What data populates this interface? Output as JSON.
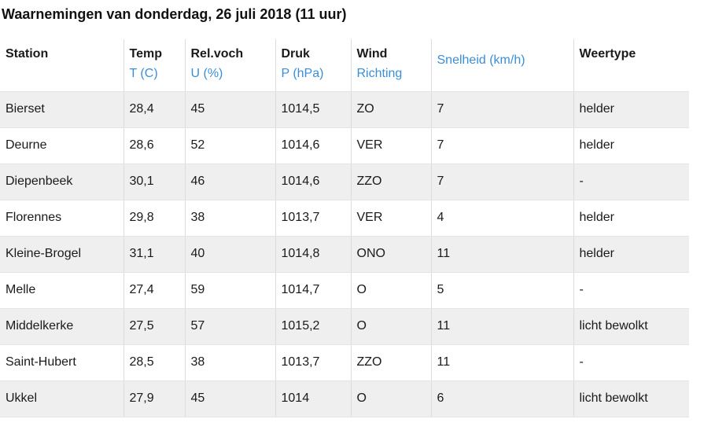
{
  "title": "Waarnemingen van donderdag, 26 juli 2018 (11 uur)",
  "headers": {
    "station": {
      "label": "Station",
      "unit": ""
    },
    "temp": {
      "label": "Temp",
      "unit": "T (C)"
    },
    "humidity": {
      "label": "Rel.voch",
      "unit": "U (%)"
    },
    "pressure": {
      "label": "Druk",
      "unit": "P (hPa)"
    },
    "wind_direction": {
      "label": "Wind",
      "unit": "Richting"
    },
    "wind_speed": {
      "label": "",
      "unit": "Snelheid (km/h)"
    },
    "weather_type": {
      "label": "Weertype",
      "unit": ""
    }
  },
  "rows": [
    {
      "station": "Bierset",
      "temp": "28,4",
      "humidity": "45",
      "pressure": "1014,5",
      "direction": "ZO",
      "speed": "7",
      "type": "helder"
    },
    {
      "station": "Deurne",
      "temp": "28,6",
      "humidity": "52",
      "pressure": "1014,6",
      "direction": "VER",
      "speed": "7",
      "type": "helder"
    },
    {
      "station": "Diepenbeek",
      "temp": "30,1",
      "humidity": "46",
      "pressure": "1014,6",
      "direction": "ZZO",
      "speed": "7",
      "type": "-"
    },
    {
      "station": "Florennes",
      "temp": "29,8",
      "humidity": "38",
      "pressure": "1013,7",
      "direction": "VER",
      "speed": "4",
      "type": "helder"
    },
    {
      "station": "Kleine-Brogel",
      "temp": "31,1",
      "humidity": "40",
      "pressure": "1014,8",
      "direction": "ONO",
      "speed": "11",
      "type": "helder"
    },
    {
      "station": "Melle",
      "temp": "27,4",
      "humidity": "59",
      "pressure": "1014,7",
      "direction": "O",
      "speed": "5",
      "type": "-"
    },
    {
      "station": "Middelkerke",
      "temp": "27,5",
      "humidity": "57",
      "pressure": "1015,2",
      "direction": "O",
      "speed": "11",
      "type": "licht bewolkt"
    },
    {
      "station": "Saint-Hubert",
      "temp": "28,5",
      "humidity": "38",
      "pressure": "1013,7",
      "direction": "ZZO",
      "speed": "11",
      "type": "-"
    },
    {
      "station": "Ukkel",
      "temp": "27,9",
      "humidity": "45",
      "pressure": "1014",
      "direction": "O",
      "speed": "6",
      "type": "licht bewolkt"
    }
  ],
  "colors": {
    "unit_text": "#3a8ed8",
    "stripe": "#efefef",
    "border": "#dcdcdc"
  }
}
